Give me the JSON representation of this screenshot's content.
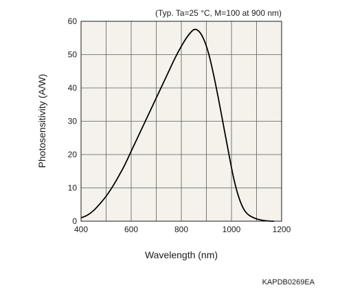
{
  "chart_data": {
    "type": "line",
    "title": "",
    "annotation": "(Typ. Ta=25 °C, M=100 at 900 nm)",
    "xlabel": "Wavelength (nm)",
    "ylabel": "Photosensitivity (A/W)",
    "xlim": [
      400,
      1200
    ],
    "ylim": [
      0,
      60
    ],
    "x_ticks": [
      "400",
      "600",
      "800",
      "1000",
      "1200"
    ],
    "y_ticks": [
      "0",
      "10",
      "20",
      "30",
      "40",
      "50",
      "60"
    ],
    "grid": true,
    "colors": {
      "plot_background": "#f4f2ea",
      "grid": "#5a5a5a",
      "curve": "#000000"
    },
    "series": [
      {
        "x": [
          400,
          425,
          450,
          475,
          500,
          525,
          550,
          575,
          600,
          625,
          650,
          675,
          700,
          725,
          750,
          775,
          800,
          825,
          850,
          870,
          890,
          910,
          930,
          950,
          970,
          990,
          1010,
          1030,
          1050,
          1070,
          1100,
          1130,
          1150,
          1170
        ],
        "y": [
          1.0,
          1.8,
          3.2,
          5.2,
          7.5,
          10.3,
          13.5,
          17.0,
          21.0,
          25.0,
          29.0,
          33.0,
          37.0,
          41.0,
          45.0,
          49.0,
          52.5,
          55.5,
          57.5,
          57.0,
          54.5,
          50.0,
          43.5,
          36.0,
          28.0,
          20.0,
          12.5,
          7.0,
          3.5,
          1.8,
          0.7,
          0.2,
          0.05,
          0.0
        ]
      }
    ]
  },
  "footer": {
    "code": "KAPDB0269EA"
  }
}
